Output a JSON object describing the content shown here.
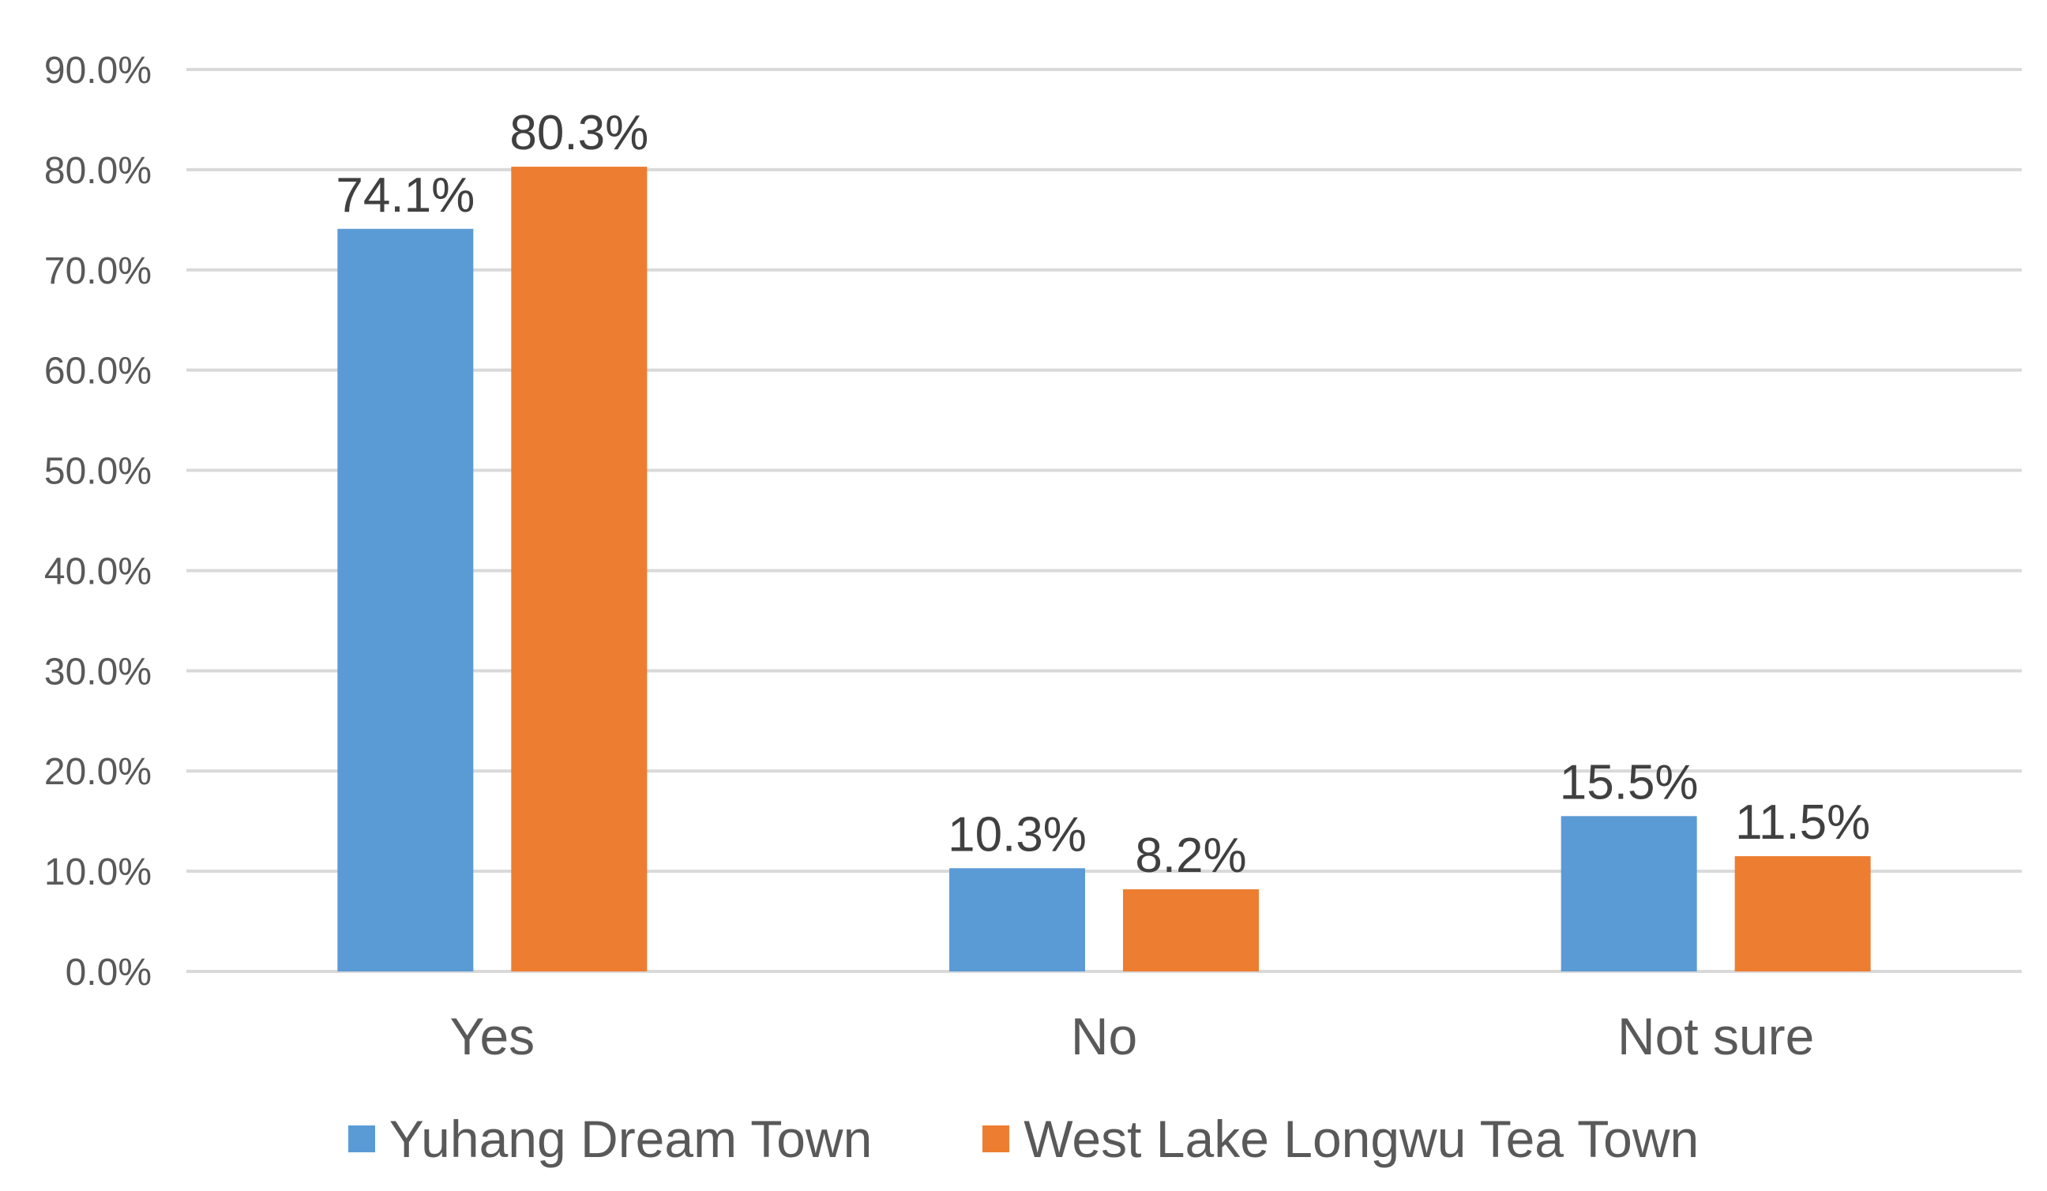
{
  "chart_data": {
    "type": "bar",
    "title": "",
    "xlabel": "",
    "ylabel": "",
    "categories": [
      "Yes",
      "No",
      "Not sure"
    ],
    "series": [
      {
        "name": "Yuhang Dream Town",
        "values": [
          74.1,
          10.3,
          15.5
        ],
        "color": "#5B9BD5"
      },
      {
        "name": "West Lake Longwu Tea Town",
        "values": [
          80.3,
          8.2,
          11.5
        ],
        "color": "#ED7D31"
      }
    ],
    "data_labels": [
      [
        "74.1%",
        "10.3%",
        "15.5%"
      ],
      [
        "80.3%",
        "8.2%",
        "11.5%"
      ]
    ],
    "y_ticks": [
      "0.0%",
      "10.0%",
      "20.0%",
      "30.0%",
      "40.0%",
      "50.0%",
      "60.0%",
      "70.0%",
      "80.0%",
      "90.0%"
    ],
    "ylim": [
      0,
      90
    ],
    "y_step": 10,
    "grid": true,
    "legend_position": "bottom",
    "colors": {
      "grid": "#D9D9D9",
      "tick_text": "#595959",
      "category_text": "#595959",
      "data_label_text": "#404040"
    }
  }
}
